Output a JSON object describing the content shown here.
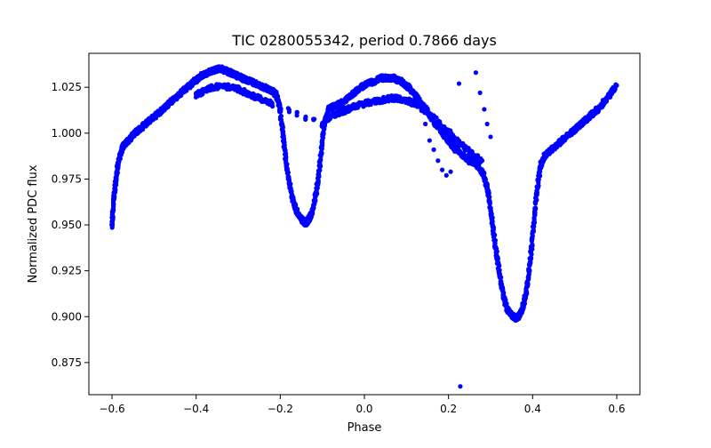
{
  "chart_data": {
    "type": "scatter",
    "title": "TIC 0280055342, period 0.7866 days",
    "xlabel": "Phase",
    "ylabel": "Normalized PDC flux",
    "xlim": [
      -0.655,
      0.655
    ],
    "ylim": [
      0.8575,
      1.0435
    ],
    "x_ticks": [
      -0.6,
      -0.4,
      -0.2,
      0.0,
      0.2,
      0.4,
      0.6
    ],
    "x_tick_labels": [
      "−0.6",
      "−0.4",
      "−0.2",
      "0.0",
      "0.2",
      "0.4",
      "0.6"
    ],
    "y_ticks": [
      0.875,
      0.9,
      0.925,
      0.95,
      0.975,
      1.0,
      1.025
    ],
    "y_tick_labels": [
      "0.875",
      "0.900",
      "0.925",
      "0.950",
      "0.975",
      "1.000",
      "1.025"
    ],
    "grid": false,
    "marker_color": "#0000ff",
    "series": [
      {
        "points": [
          [
            -0.6,
            0.95
          ],
          [
            -0.598,
            0.958
          ],
          [
            -0.595,
            0.966
          ],
          [
            -0.592,
            0.972
          ],
          [
            -0.588,
            0.979
          ],
          [
            -0.585,
            0.984
          ],
          [
            -0.58,
            0.989
          ],
          [
            -0.575,
            0.992
          ],
          [
            -0.57,
            0.994
          ],
          [
            -0.56,
            0.996
          ],
          [
            -0.55,
            0.999
          ],
          [
            -0.54,
            1.001
          ],
          [
            -0.53,
            1.003
          ],
          [
            -0.52,
            1.005
          ],
          [
            -0.51,
            1.007
          ],
          [
            -0.5,
            1.009
          ],
          [
            -0.49,
            1.011
          ],
          [
            -0.48,
            1.013
          ],
          [
            -0.47,
            1.015
          ],
          [
            -0.46,
            1.017
          ],
          [
            -0.45,
            1.019
          ],
          [
            -0.44,
            1.021
          ],
          [
            -0.43,
            1.023
          ],
          [
            -0.42,
            1.025
          ],
          [
            -0.41,
            1.027
          ],
          [
            -0.4,
            1.029
          ],
          [
            -0.39,
            1.031
          ],
          [
            -0.38,
            1.032
          ],
          [
            -0.37,
            1.033
          ],
          [
            -0.36,
            1.034
          ],
          [
            -0.35,
            1.035
          ],
          [
            -0.34,
            1.035
          ],
          [
            -0.33,
            1.034
          ],
          [
            -0.32,
            1.033
          ],
          [
            -0.31,
            1.032
          ],
          [
            -0.3,
            1.031
          ],
          [
            -0.29,
            1.03
          ],
          [
            -0.28,
            1.029
          ],
          [
            -0.27,
            1.028
          ],
          [
            -0.26,
            1.027
          ],
          [
            -0.25,
            1.026
          ],
          [
            -0.24,
            1.025
          ],
          [
            -0.23,
            1.024
          ],
          [
            -0.22,
            1.023
          ],
          [
            -0.21,
            1.021
          ],
          [
            -0.205,
            1.018
          ],
          [
            -0.2,
            1.012
          ],
          [
            -0.195,
            1.002
          ],
          [
            -0.19,
            0.992
          ],
          [
            -0.185,
            0.983
          ],
          [
            -0.18,
            0.975
          ],
          [
            -0.175,
            0.969
          ],
          [
            -0.17,
            0.964
          ],
          [
            -0.165,
            0.96
          ],
          [
            -0.16,
            0.957
          ],
          [
            -0.155,
            0.955
          ],
          [
            -0.15,
            0.953
          ],
          [
            -0.145,
            0.952
          ],
          [
            -0.14,
            0.951
          ],
          [
            -0.135,
            0.952
          ],
          [
            -0.13,
            0.954
          ],
          [
            -0.125,
            0.957
          ],
          [
            -0.12,
            0.961
          ],
          [
            -0.115,
            0.967
          ],
          [
            -0.11,
            0.975
          ],
          [
            -0.105,
            0.985
          ],
          [
            -0.1,
            0.996
          ],
          [
            -0.095,
            1.005
          ],
          [
            -0.09,
            1.01
          ],
          [
            -0.085,
            1.013
          ],
          [
            -0.08,
            1.014
          ],
          [
            -0.07,
            1.015
          ],
          [
            -0.06,
            1.016
          ],
          [
            -0.05,
            1.017
          ],
          [
            -0.04,
            1.019
          ],
          [
            -0.03,
            1.021
          ],
          [
            -0.02,
            1.023
          ],
          [
            -0.01,
            1.025
          ],
          [
            0.0,
            1.026
          ],
          [
            0.01,
            1.027
          ],
          [
            0.02,
            1.028
          ],
          [
            0.03,
            1.029
          ],
          [
            0.04,
            1.03
          ],
          [
            0.05,
            1.03
          ],
          [
            0.06,
            1.03
          ],
          [
            0.07,
            1.03
          ],
          [
            0.08,
            1.029
          ],
          [
            0.09,
            1.028
          ],
          [
            0.1,
            1.026
          ],
          [
            0.11,
            1.024
          ],
          [
            0.12,
            1.021
          ],
          [
            0.13,
            1.018
          ],
          [
            0.14,
            1.015
          ],
          [
            0.15,
            1.012
          ],
          [
            0.16,
            1.008
          ],
          [
            0.17,
            1.005
          ],
          [
            0.18,
            1.002
          ],
          [
            0.19,
            0.999
          ],
          [
            0.2,
            0.996
          ],
          [
            0.21,
            0.993
          ],
          [
            0.22,
            0.991
          ],
          [
            0.23,
            0.989
          ],
          [
            0.24,
            0.987
          ],
          [
            0.25,
            0.985
          ],
          [
            0.26,
            0.984
          ],
          [
            0.27,
            0.982
          ],
          [
            0.28,
            0.979
          ],
          [
            0.285,
            0.976
          ],
          [
            0.29,
            0.972
          ],
          [
            0.295,
            0.966
          ],
          [
            0.3,
            0.958
          ],
          [
            0.305,
            0.95
          ],
          [
            0.31,
            0.941
          ],
          [
            0.315,
            0.933
          ],
          [
            0.32,
            0.925
          ],
          [
            0.325,
            0.918
          ],
          [
            0.33,
            0.912
          ],
          [
            0.335,
            0.907
          ],
          [
            0.34,
            0.904
          ],
          [
            0.345,
            0.902
          ],
          [
            0.35,
            0.901
          ],
          [
            0.355,
            0.9
          ],
          [
            0.36,
            0.899
          ],
          [
            0.365,
            0.9
          ],
          [
            0.37,
            0.901
          ],
          [
            0.375,
            0.904
          ],
          [
            0.38,
            0.908
          ],
          [
            0.385,
            0.914
          ],
          [
            0.39,
            0.922
          ],
          [
            0.395,
            0.932
          ],
          [
            0.4,
            0.944
          ],
          [
            0.405,
            0.956
          ],
          [
            0.41,
            0.968
          ],
          [
            0.415,
            0.977
          ],
          [
            0.42,
            0.983
          ],
          [
            0.425,
            0.986
          ],
          [
            0.43,
            0.988
          ],
          [
            0.44,
            0.99
          ],
          [
            0.45,
            0.992
          ],
          [
            0.46,
            0.994
          ],
          [
            0.47,
            0.996
          ],
          [
            0.48,
            0.998
          ],
          [
            0.49,
            1.0
          ],
          [
            0.5,
            1.002
          ],
          [
            0.51,
            1.004
          ],
          [
            0.52,
            1.006
          ],
          [
            0.53,
            1.008
          ],
          [
            0.54,
            1.01
          ],
          [
            0.55,
            1.012
          ],
          [
            0.56,
            1.014
          ],
          [
            0.57,
            1.017
          ],
          [
            0.58,
            1.02
          ],
          [
            0.59,
            1.023
          ],
          [
            0.6,
            1.026
          ]
        ]
      },
      {
        "points": [
          [
            -0.4,
            1.021
          ],
          [
            -0.38,
            1.023
          ],
          [
            -0.36,
            1.025
          ],
          [
            -0.34,
            1.026
          ],
          [
            -0.32,
            1.025
          ],
          [
            -0.3,
            1.024
          ],
          [
            -0.28,
            1.022
          ],
          [
            -0.26,
            1.02
          ],
          [
            -0.24,
            1.018
          ],
          [
            -0.22,
            1.016
          ],
          [
            -0.1,
            1.005
          ],
          [
            -0.08,
            1.009
          ],
          [
            -0.06,
            1.011
          ],
          [
            -0.04,
            1.013
          ],
          [
            -0.02,
            1.015
          ],
          [
            0.0,
            1.016
          ],
          [
            0.02,
            1.017
          ],
          [
            0.04,
            1.018
          ],
          [
            0.06,
            1.019
          ],
          [
            0.08,
            1.019
          ],
          [
            0.1,
            1.018
          ],
          [
            0.12,
            1.016
          ],
          [
            0.14,
            1.013
          ],
          [
            0.16,
            1.009
          ],
          [
            0.18,
            1.005
          ],
          [
            0.2,
            1.001
          ],
          [
            0.22,
            0.996
          ],
          [
            0.24,
            0.992
          ],
          [
            0.26,
            0.988
          ],
          [
            0.28,
            0.985
          ]
        ]
      },
      {
        "points": [
          [
            0.145,
            1.005
          ],
          [
            0.155,
            0.996
          ],
          [
            0.165,
            0.991
          ],
          [
            0.175,
            0.985
          ],
          [
            0.185,
            0.98
          ],
          [
            0.195,
            0.977
          ],
          [
            0.205,
            0.979
          ],
          [
            0.215,
            0.99
          ],
          [
            0.225,
            1.027
          ],
          [
            0.228,
            0.862
          ],
          [
            0.265,
            1.033
          ],
          [
            0.275,
            1.022
          ],
          [
            0.285,
            1.013
          ],
          [
            0.292,
            1.005
          ],
          [
            0.3,
            0.998
          ]
        ]
      }
    ]
  }
}
